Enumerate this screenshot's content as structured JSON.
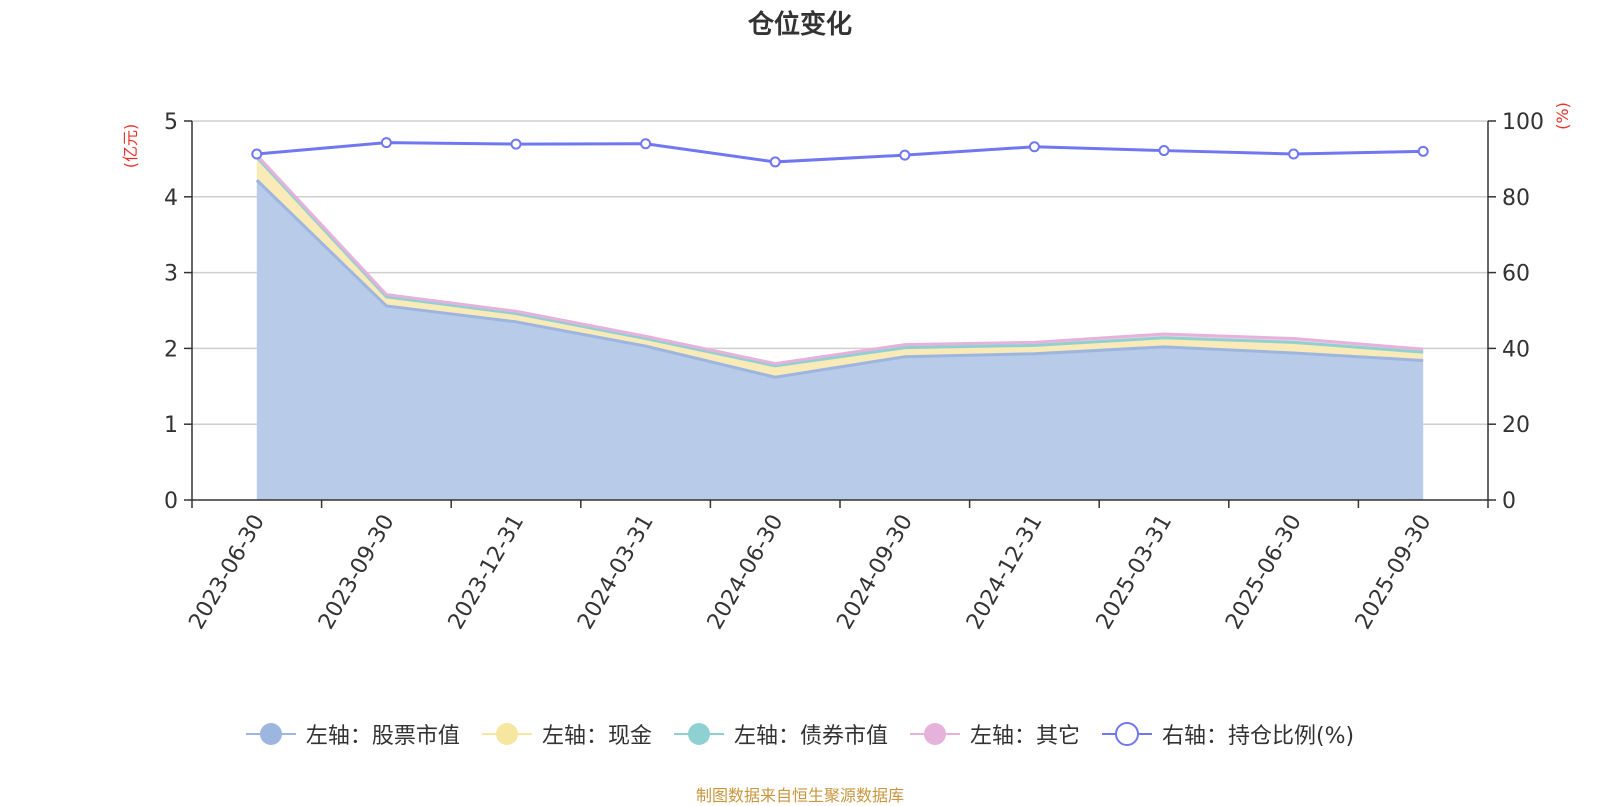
{
  "title": "仓位变化",
  "source": "制图数据来自恒生聚源数据库",
  "chart_data": {
    "type": "area",
    "categories": [
      "2023-06-30",
      "2023-09-30",
      "2023-12-31",
      "2024-03-31",
      "2024-06-30",
      "2024-09-30",
      "2024-12-31",
      "2025-03-31",
      "2025-06-30",
      "2025-09-30"
    ],
    "left_axis": {
      "label": "(亿元)",
      "ticks": [
        "0",
        "1",
        "2",
        "3",
        "4",
        "5"
      ],
      "range": [
        0,
        5
      ]
    },
    "right_axis": {
      "label": "(%)",
      "ticks": [
        "0",
        "20",
        "40",
        "60",
        "80",
        "100"
      ],
      "range": [
        0,
        100
      ]
    },
    "grid": true,
    "legend_position": "bottom",
    "stacked_series": [
      {
        "name": "左轴：股票市值",
        "axis": "left",
        "color": "#9db6e0",
        "fill": "#b8cbe9",
        "values": [
          4.22,
          2.56,
          2.35,
          2.03,
          1.62,
          1.89,
          1.93,
          2.02,
          1.94,
          1.84
        ]
      },
      {
        "name": "左轴：现金",
        "axis": "left",
        "color": "#f7e6a0",
        "fill": "#faeab7",
        "values": [
          0.3,
          0.12,
          0.11,
          0.1,
          0.15,
          0.12,
          0.11,
          0.12,
          0.14,
          0.11
        ]
      },
      {
        "name": "左轴：债券市值",
        "axis": "left",
        "color": "#8fd0d2",
        "fill": "#b5e0e1",
        "values": [
          0,
          0,
          0,
          0,
          0,
          0,
          0,
          0,
          0,
          0
        ]
      },
      {
        "name": "左轴：其它",
        "axis": "left",
        "color": "#e6b2db",
        "fill": "#f1d2ea",
        "values": [
          0.03,
          0.03,
          0.03,
          0.03,
          0.03,
          0.04,
          0.04,
          0.05,
          0.05,
          0.04
        ]
      }
    ],
    "line_series": [
      {
        "name": "右轴：持仓比例(%)",
        "axis": "right",
        "color": "#7077f0",
        "values": [
          91.3,
          94.3,
          93.9,
          94.0,
          89.2,
          91.0,
          93.2,
          92.2,
          91.3,
          92.0
        ]
      }
    ]
  }
}
